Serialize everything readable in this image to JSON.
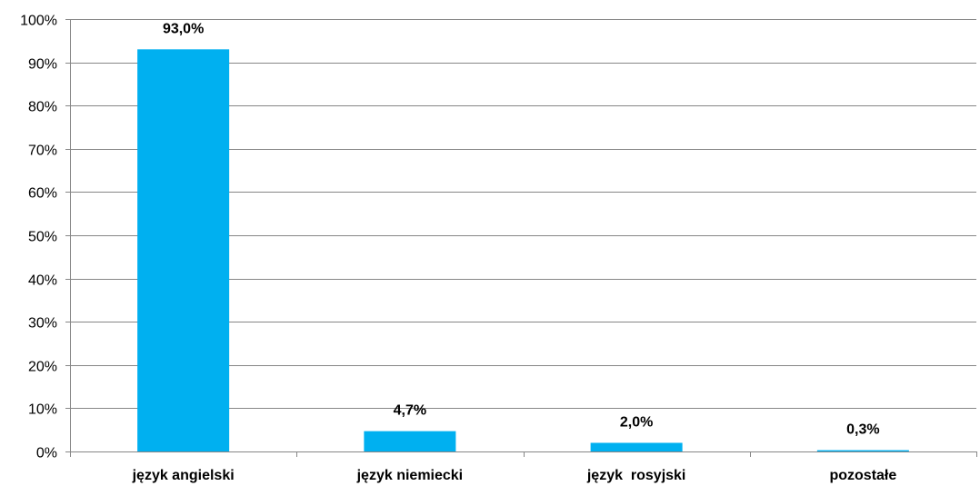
{
  "chart_data": {
    "type": "bar",
    "categories": [
      "język angielski",
      "język niemiecki",
      "język  rosyjski",
      "pozostałe"
    ],
    "values": [
      93.0,
      4.7,
      2.0,
      0.3
    ],
    "data_labels": [
      "93,0%",
      "4,7%",
      "2,0%",
      "0,3%"
    ],
    "title": "",
    "xlabel": "",
    "ylabel": "",
    "ylim": [
      0,
      100
    ],
    "y_ticks": [
      "0%",
      "10%",
      "20%",
      "30%",
      "40%",
      "50%",
      "60%",
      "70%",
      "80%",
      "90%",
      "100%"
    ],
    "grid": true,
    "legend": "none",
    "bar_color": "#00B0F0",
    "grid_color": "#868686"
  }
}
